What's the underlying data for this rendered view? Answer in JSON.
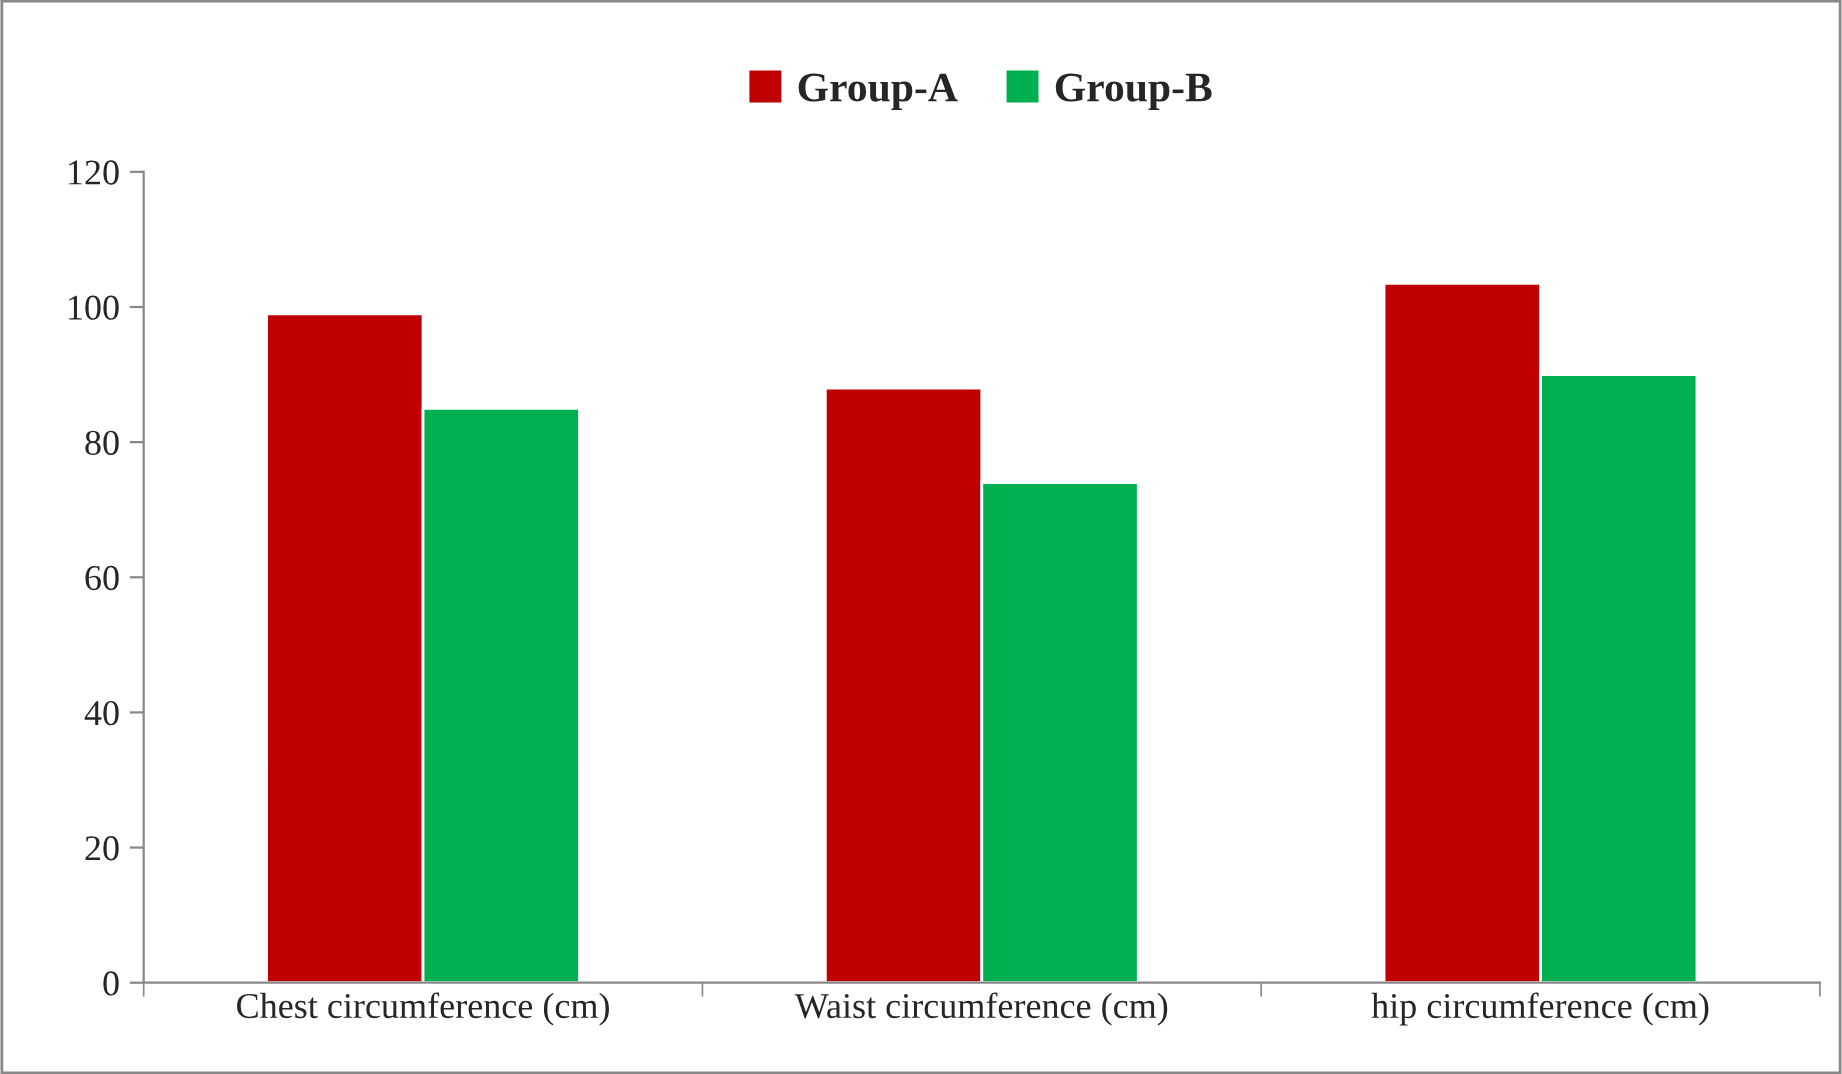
{
  "chart_data": {
    "type": "bar",
    "categories": [
      "Chest circumference (cm)",
      "Waist circumference (cm)",
      "hip circumference (cm)"
    ],
    "series": [
      {
        "name": "Group-A",
        "color": "#c00000",
        "values": [
          99,
          88,
          103.5
        ]
      },
      {
        "name": "Group-B",
        "color": "#00b050",
        "values": [
          85,
          74,
          90
        ]
      }
    ],
    "ylim": [
      0,
      120
    ],
    "yticks": [
      0,
      20,
      40,
      60,
      80,
      100,
      120
    ],
    "grid": false,
    "legend": "top"
  }
}
